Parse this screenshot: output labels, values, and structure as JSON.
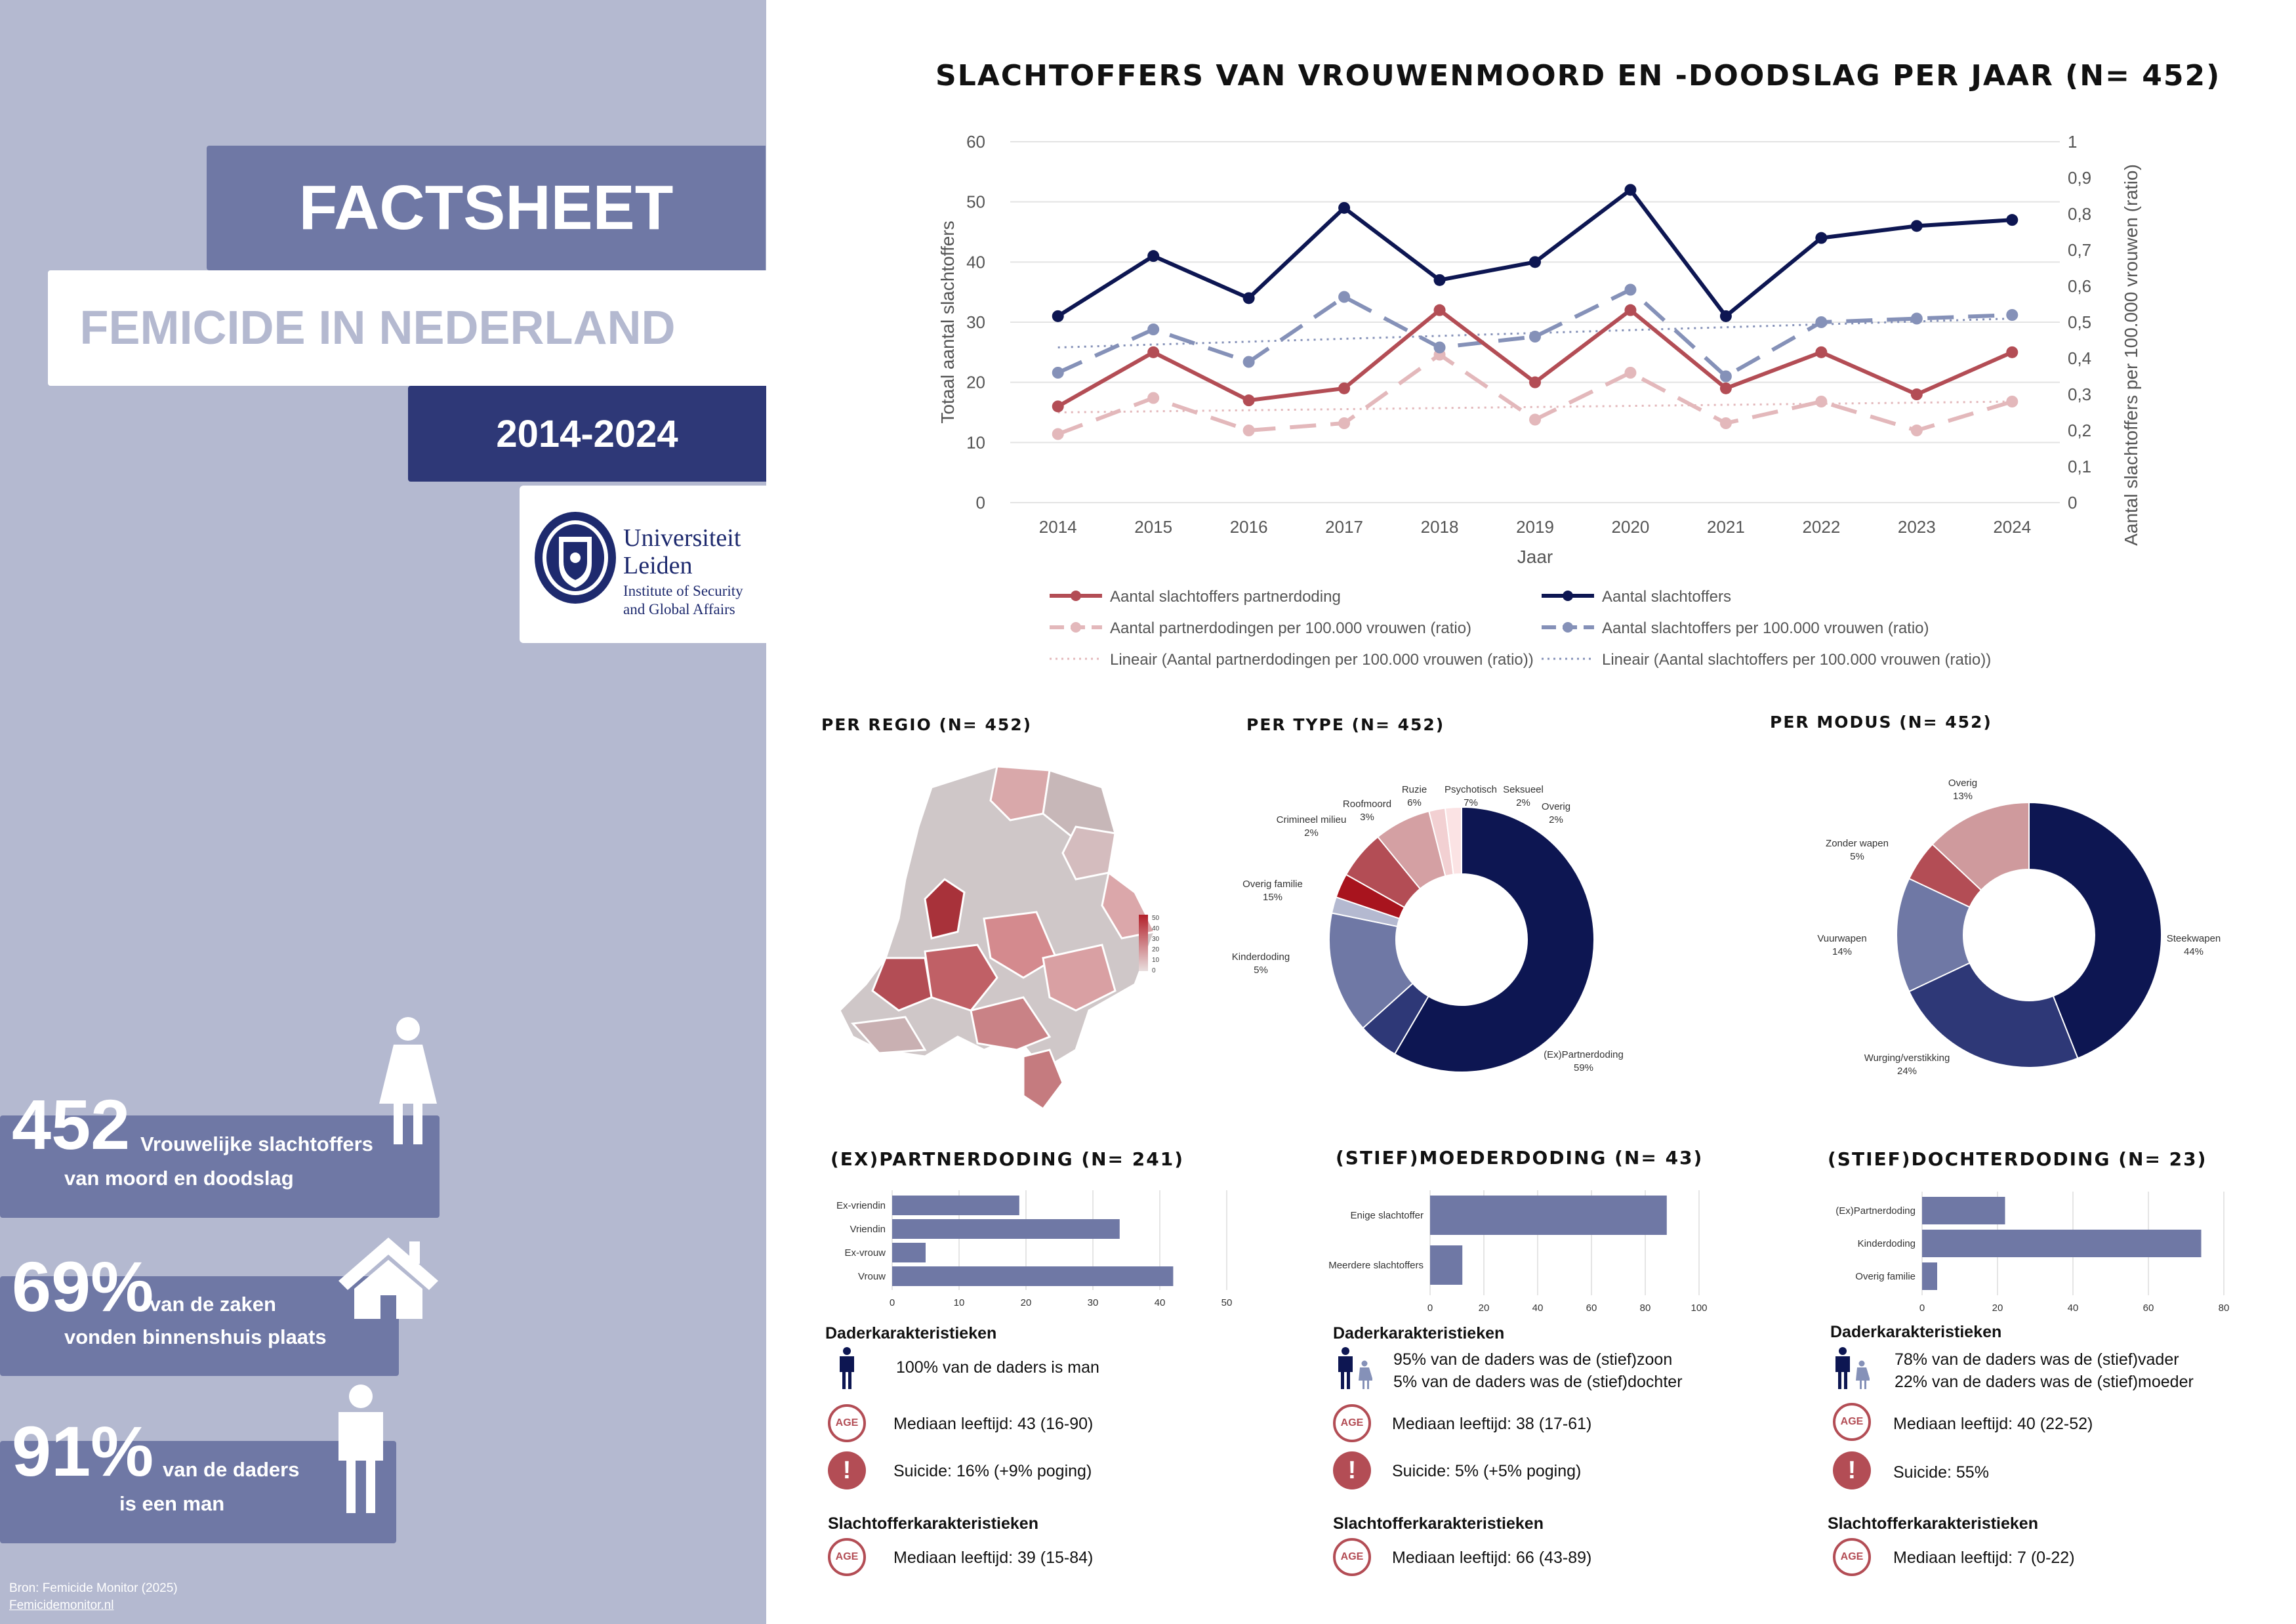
{
  "sidebar": {
    "title": "FACTSHEET",
    "subtitle": "FEMICIDE IN NEDERLAND",
    "period": "2014-2024",
    "logo": {
      "name": "Universiteit Leiden",
      "line1": "Universiteit",
      "line2": "Leiden",
      "line3": "Institute of Security",
      "line4": "and Global Affairs"
    },
    "stats": [
      {
        "number": "452",
        "text1": "Vrouwelijke slachtoffers",
        "text2": "van moord en doodslag",
        "icon": "woman-icon"
      },
      {
        "number": "69%",
        "text1": "van de zaken",
        "text2": "vonden binnenshuis plaats",
        "icon": "house-icon"
      },
      {
        "number": "91%",
        "text1": "van de daders",
        "text2": "is een man",
        "icon": "man-icon"
      }
    ],
    "source_label": "Bron: Femicide Monitor (2025)",
    "source_link": "Femicidemonitor.nl"
  },
  "colors": {
    "navy": "#0d1652",
    "slate": "#8591b8",
    "red": "#b34d55",
    "pink": "#e3b8bb",
    "bar": "#6f78a5",
    "sidebar": "#b4b9d0"
  },
  "chart_data": [
    {
      "type": "line",
      "title": "SLACHTOFFERS VAN VROUWENMOORD EN -DOODSLAG PER JAAR (N= 452)",
      "xlabel": "Jaar",
      "ylabel": "Totaal aantal slachtoffers",
      "y2label": "Aantal slachtoffers per 100.000 vrouwen (ratio)",
      "x": [
        "2014",
        "2015",
        "2016",
        "2017",
        "2018",
        "2019",
        "2020",
        "2021",
        "2022",
        "2023",
        "2024"
      ],
      "ylim": [
        0,
        60
      ],
      "yticks": [
        "0",
        "10",
        "20",
        "30",
        "40",
        "50",
        "60"
      ],
      "y2lim": [
        0,
        1
      ],
      "y2ticks": [
        "0",
        "0,1",
        "0,2",
        "0,3",
        "0,4",
        "0,5",
        "0,6",
        "0,7",
        "0,8",
        "0,9",
        "1"
      ],
      "series": [
        {
          "name": "Aantal slachtoffers partnerdoding",
          "axis": "left",
          "values": [
            16,
            25,
            17,
            19,
            32,
            20,
            32,
            19,
            25,
            18,
            25
          ]
        },
        {
          "name": "Aantal slachtoffers",
          "axis": "left",
          "values": [
            31,
            41,
            34,
            49,
            37,
            40,
            52,
            31,
            44,
            46,
            47
          ]
        },
        {
          "name": "Aantal partnerdodingen per 100.000 vrouwen (ratio)",
          "axis": "right",
          "values": [
            0.19,
            0.29,
            0.2,
            0.22,
            0.41,
            0.23,
            0.36,
            0.22,
            0.28,
            0.2,
            0.28
          ]
        },
        {
          "name": "Aantal slachtoffers per 100.000 vrouwen (ratio)",
          "axis": "right",
          "values": [
            0.36,
            0.48,
            0.39,
            0.57,
            0.43,
            0.46,
            0.59,
            0.35,
            0.5,
            0.51,
            0.52
          ]
        },
        {
          "name": "Lineair (Aantal partnerdodingen per 100.000 vrouwen (ratio))",
          "axis": "right",
          "values": [
            0.25,
            0.253,
            0.256,
            0.259,
            0.262,
            0.265,
            0.268,
            0.271,
            0.274,
            0.277,
            0.28
          ]
        },
        {
          "name": "Lineair (Aantal slachtoffers per 100.000 vrouwen (ratio))",
          "axis": "right",
          "values": [
            0.43,
            0.438,
            0.446,
            0.454,
            0.462,
            0.47,
            0.478,
            0.486,
            0.494,
            0.502,
            0.51
          ]
        }
      ],
      "legend": "bottom"
    },
    {
      "type": "pie",
      "title": "PER TYPE (N= 452)",
      "categories": [
        "(Ex)Partnerdoding",
        "Kinderdoding",
        "Overig familie",
        "Crimineel milieu",
        "Roofmoord",
        "Ruzie",
        "Psychotisch",
        "Seksueel",
        "Overig"
      ],
      "values": [
        59,
        5,
        15,
        2,
        3,
        6,
        7,
        2,
        2
      ],
      "labels": [
        "59%",
        "5%",
        "15%",
        "2%",
        "3%",
        "6%",
        "7%",
        "2%",
        "2%"
      ]
    },
    {
      "type": "pie",
      "title": "PER MODUS (N= 452)",
      "categories": [
        "Steekwapen",
        "Wurging/verstikking",
        "Vuurwapen",
        "Zonder wapen",
        "Overig"
      ],
      "values": [
        44,
        24,
        14,
        5,
        13
      ],
      "labels": [
        "44%",
        "24%",
        "14%",
        "5%",
        "13%"
      ]
    },
    {
      "type": "bar",
      "title": "(EX)PARTNERDODING (N= 241)",
      "categories": [
        "Ex-vriendin",
        "Vriendin",
        "Ex-vrouw",
        "Vrouw"
      ],
      "values": [
        19,
        34,
        5,
        42
      ],
      "xlim": [
        0,
        50
      ],
      "xticks": [
        "0",
        "10",
        "20",
        "30",
        "40",
        "50"
      ]
    },
    {
      "type": "bar",
      "title": "(STIEF)MOEDERDODING (N= 43)",
      "categories": [
        "Enige slachtoffer",
        "Meerdere slachtoffers"
      ],
      "values": [
        88,
        12
      ],
      "xlim": [
        0,
        100
      ],
      "xticks": [
        "0",
        "20",
        "40",
        "60",
        "80",
        "100"
      ]
    },
    {
      "type": "bar",
      "title": "(STIEF)DOCHTERDODING (N= 23)",
      "categories": [
        "(Ex)Partnerdoding",
        "Kinderdoding",
        "Overig familie"
      ],
      "values": [
        22,
        74,
        4
      ],
      "xlim": [
        0,
        80
      ],
      "xticks": [
        "0",
        "20",
        "40",
        "60",
        "80"
      ]
    }
  ],
  "map": {
    "title": "PER REGIO (N= 452)",
    "legend_ticks": [
      "50",
      "40",
      "30",
      "20",
      "10",
      "0"
    ]
  },
  "profiles": [
    {
      "dader_head": "Daderkarakteristieken",
      "line1": "100% van de daders is man",
      "line2": "",
      "age": "Mediaan leeftijd: 43 (16-90)",
      "suicide": "Suicide: 16% (+9% poging)",
      "victim_head": "Slachtofferkarakteristieken",
      "victim_age": "Mediaan leeftijd: 39 (15-84)"
    },
    {
      "dader_head": "Daderkarakteristieken",
      "line1": "95% van de daders was de (stief)zoon",
      "line2": "5% van de daders was de (stief)dochter",
      "age": "Mediaan leeftijd: 38 (17-61)",
      "suicide": "Suicide: 5% (+5% poging)",
      "victim_head": "Slachtofferkarakteristieken",
      "victim_age": "Mediaan leeftijd: 66 (43-89)"
    },
    {
      "dader_head": "Daderkarakteristieken",
      "line1": "78% van de daders was de (stief)vader",
      "line2": "22% van de daders was de (stief)moeder",
      "age": "Mediaan leeftijd: 40 (22-52)",
      "suicide": "Suicide: 55%",
      "victim_head": "Slachtofferkarakteristieken",
      "victim_age": "Mediaan leeftijd: 7 (0-22)"
    }
  ],
  "icons": {
    "age": "AGE",
    "warning": "!"
  }
}
